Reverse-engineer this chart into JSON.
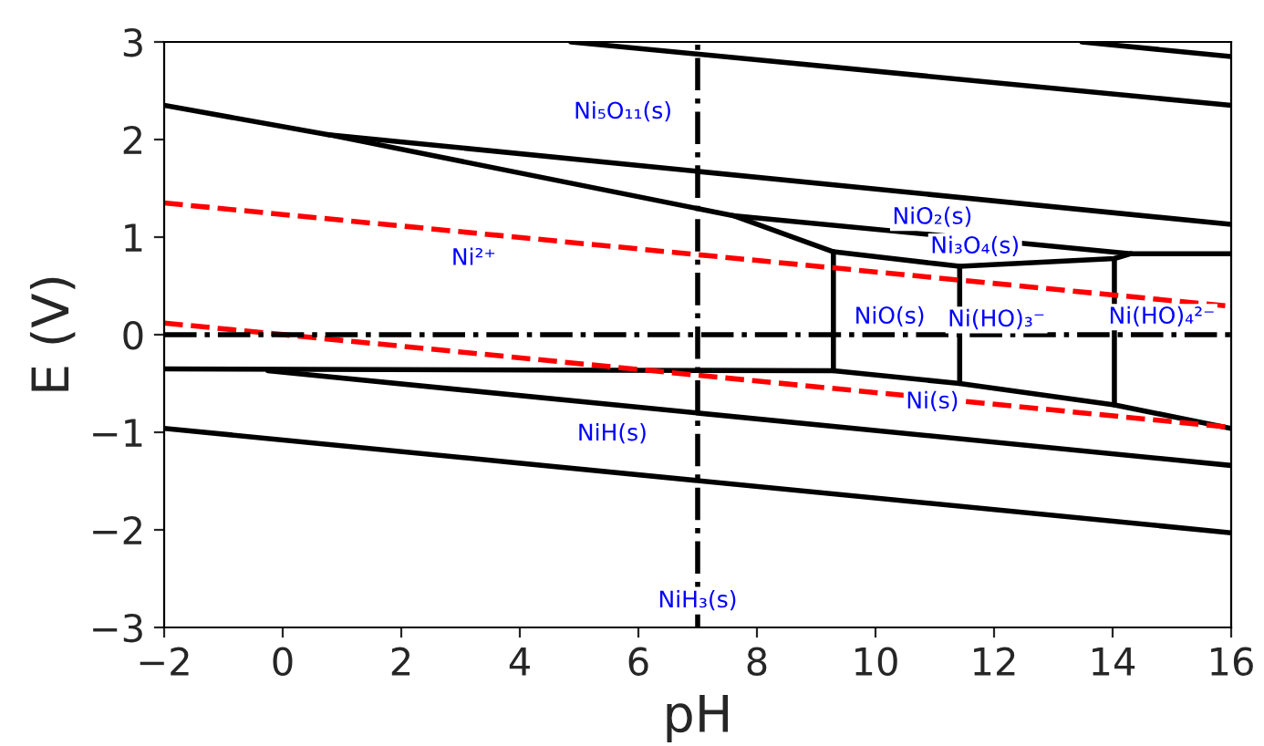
{
  "chart_data": {
    "type": "line",
    "xlabel": "pH",
    "ylabel": "E (V)",
    "xlim": [
      -2,
      16
    ],
    "ylim": [
      -3,
      3
    ],
    "xticks": [
      {
        "value": -2,
        "label": "−2"
      },
      0,
      2,
      4,
      6,
      8,
      10,
      12,
      14,
      16
    ],
    "yticks": [
      {
        "value": -3,
        "label": "−3"
      },
      {
        "value": -2,
        "label": "−2"
      },
      {
        "value": -1,
        "label": "−1"
      },
      0,
      1,
      2,
      3
    ],
    "grid": false,
    "legend": false,
    "marker": "none",
    "series": [
      {
        "color": "#000000",
        "line_style": "solid",
        "x": [
          13.48,
          16
        ],
        "values": [
          3.0,
          2.85
        ]
      },
      {
        "color": "#000000",
        "line_style": "solid",
        "x": [
          4.86,
          16
        ],
        "values": [
          3.0,
          2.35
        ]
      },
      {
        "color": "#000000",
        "line_style": "solid",
        "x": [
          -2,
          0.77,
          16
        ],
        "values": [
          2.35,
          2.05,
          1.13
        ]
      },
      {
        "color": "#000000",
        "line_style": "solid",
        "x": [
          0.77,
          7.6,
          14.31,
          16
        ],
        "values": [
          2.05,
          1.22,
          0.83,
          0.83
        ]
      },
      {
        "color": "#000000",
        "line_style": "solid",
        "x": [
          7.6,
          9.29,
          11.42,
          14.03,
          14.31
        ],
        "values": [
          1.22,
          0.85,
          0.7,
          0.78,
          0.83
        ]
      },
      {
        "color": "#000000",
        "line_style": "solid",
        "x": [
          9.29,
          9.29
        ],
        "values": [
          0.85,
          -0.37
        ]
      },
      {
        "color": "#000000",
        "line_style": "solid",
        "x": [
          11.42,
          11.42
        ],
        "values": [
          0.7,
          -0.5
        ]
      },
      {
        "color": "#000000",
        "line_style": "solid",
        "x": [
          14.03,
          14.03
        ],
        "values": [
          0.78,
          -0.72
        ]
      },
      {
        "color": "#000000",
        "line_style": "solid",
        "x": [
          -2,
          9.29,
          11.42,
          14.03,
          16
        ],
        "values": [
          -0.35,
          -0.37,
          -0.5,
          -0.72,
          -0.96
        ]
      },
      {
        "color": "#000000",
        "line_style": "solid",
        "x": [
          -0.25,
          16
        ],
        "values": [
          -0.37,
          -1.34
        ]
      },
      {
        "color": "#000000",
        "line_style": "solid",
        "x": [
          -2,
          16
        ],
        "values": [
          -0.96,
          -2.03
        ]
      },
      {
        "color": "#ff0000",
        "line_style": "dashed",
        "x": [
          -2,
          16
        ],
        "values": [
          1.35,
          0.29
        ]
      },
      {
        "color": "#ff0000",
        "line_style": "dashed",
        "x": [
          -2,
          16
        ],
        "values": [
          0.12,
          -0.95
        ]
      }
    ],
    "ref_lines": [
      {
        "axis": "y",
        "value": 0,
        "color": "#000000",
        "line_style": "dashdot"
      },
      {
        "axis": "x",
        "value": 7,
        "color": "#000000",
        "line_style": "dashdot"
      }
    ],
    "annotations": [
      "Ni₅O₁₁(s)",
      "Ni²⁺",
      "NiO₂(s)",
      "Ni₃O₄(s)",
      "NiO(s)",
      "Ni(HO)₃⁻",
      "Ni(HO)₄²⁻",
      "Ni(s)",
      "NiH(s)",
      "NiH₃(s)"
    ]
  }
}
